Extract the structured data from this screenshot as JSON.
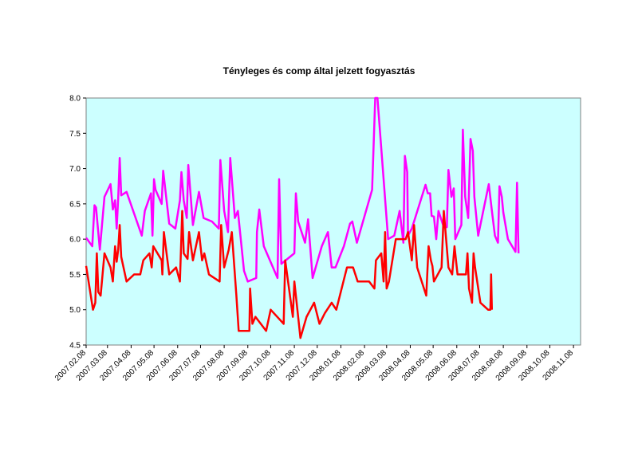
{
  "chart_data": {
    "type": "line",
    "title": "Tényleges és comp által jelzett fogyasztás",
    "xlabel": "",
    "ylabel": "",
    "ylim": [
      4.5,
      8.0
    ],
    "yticks": [
      "4.5",
      "5.0",
      "5.5",
      "6.0",
      "6.5",
      "7.0",
      "7.5",
      "8.0"
    ],
    "grid": false,
    "legend": "none",
    "plot_background": "#ccffff",
    "x_tick_labels": [
      "2007.02.08",
      "2007.03.08",
      "2007.04.08",
      "2007.05.08",
      "2007.06.08",
      "2007.07.08",
      "2007.08.08",
      "2007.09.08",
      "2007.10.08",
      "2007.11.08",
      "2007.12.08",
      "2008.01.08",
      "2008.02.08",
      "2008.03.08",
      "2008.04.08",
      "2008.05.08",
      "2008.06.08",
      "2008.07.08",
      "2008.08.08",
      "2008.09.08",
      "2008.10.08",
      "2008.11.08"
    ],
    "series": [
      {
        "color": "#ff00ff",
        "points": [
          [
            "2007-02-08",
            6.02
          ],
          [
            "2007-02-16",
            5.9
          ],
          [
            "2007-02-19",
            6.48
          ],
          [
            "2007-02-21",
            6.45
          ],
          [
            "2007-02-26",
            5.85
          ],
          [
            "2007-03-04",
            6.6
          ],
          [
            "2007-03-12",
            6.78
          ],
          [
            "2007-03-15",
            6.42
          ],
          [
            "2007-03-18",
            6.55
          ],
          [
            "2007-03-20",
            6.15
          ],
          [
            "2007-03-22",
            6.58
          ],
          [
            "2007-03-24",
            7.15
          ],
          [
            "2007-03-26",
            6.62
          ],
          [
            "2007-04-02",
            6.67
          ],
          [
            "2007-04-22",
            6.05
          ],
          [
            "2007-04-26",
            6.4
          ],
          [
            "2007-05-04",
            6.65
          ],
          [
            "2007-05-06",
            6.05
          ],
          [
            "2007-05-08",
            6.85
          ],
          [
            "2007-05-10",
            6.7
          ],
          [
            "2007-05-18",
            6.5
          ],
          [
            "2007-05-20",
            6.97
          ],
          [
            "2007-05-28",
            6.22
          ],
          [
            "2007-06-05",
            6.15
          ],
          [
            "2007-06-11",
            6.55
          ],
          [
            "2007-06-13",
            6.95
          ],
          [
            "2007-06-16",
            6.55
          ],
          [
            "2007-06-20",
            6.3
          ],
          [
            "2007-06-22",
            7.05
          ],
          [
            "2007-06-28",
            6.2
          ],
          [
            "2007-07-06",
            6.67
          ],
          [
            "2007-07-12",
            6.3
          ],
          [
            "2007-07-23",
            6.25
          ],
          [
            "2007-08-01",
            6.15
          ],
          [
            "2007-08-03",
            7.12
          ],
          [
            "2007-08-08",
            6.4
          ],
          [
            "2007-08-13",
            6.1
          ],
          [
            "2007-08-16",
            7.15
          ],
          [
            "2007-08-22",
            6.3
          ],
          [
            "2007-08-26",
            6.4
          ],
          [
            "2007-09-03",
            5.55
          ],
          [
            "2007-09-08",
            5.4
          ],
          [
            "2007-09-19",
            5.45
          ],
          [
            "2007-09-20",
            6.1
          ],
          [
            "2007-09-23",
            6.42
          ],
          [
            "2007-09-29",
            5.9
          ],
          [
            "2007-10-17",
            5.45
          ],
          [
            "2007-10-19",
            6.85
          ],
          [
            "2007-10-22",
            5.65
          ],
          [
            "2007-11-08",
            5.8
          ],
          [
            "2007-11-10",
            6.65
          ],
          [
            "2007-11-13",
            6.25
          ],
          [
            "2007-11-22",
            5.95
          ],
          [
            "2007-11-26",
            6.28
          ],
          [
            "2007-12-02",
            5.45
          ],
          [
            "2007-12-14",
            5.9
          ],
          [
            "2007-12-22",
            6.1
          ],
          [
            "2007-12-27",
            5.6
          ],
          [
            "2008-01-01",
            5.6
          ],
          [
            "2008-01-12",
            5.9
          ],
          [
            "2008-01-20",
            6.22
          ],
          [
            "2008-01-23",
            6.25
          ],
          [
            "2008-01-29",
            5.95
          ],
          [
            "2008-02-18",
            6.7
          ],
          [
            "2008-02-22",
            8.02
          ],
          [
            "2008-02-25",
            8.02
          ],
          [
            "2008-03-10",
            6.0
          ],
          [
            "2008-03-18",
            6.05
          ],
          [
            "2008-03-25",
            6.4
          ],
          [
            "2008-03-30",
            5.95
          ],
          [
            "2008-04-01",
            7.18
          ],
          [
            "2008-04-04",
            6.95
          ],
          [
            "2008-04-05",
            6.05
          ],
          [
            "2008-04-10",
            6.15
          ],
          [
            "2008-04-28",
            6.77
          ],
          [
            "2008-05-01",
            6.65
          ],
          [
            "2008-05-04",
            6.65
          ],
          [
            "2008-05-06",
            6.33
          ],
          [
            "2008-05-09",
            6.32
          ],
          [
            "2008-05-12",
            6.0
          ],
          [
            "2008-05-15",
            6.4
          ],
          [
            "2008-05-22",
            6.17
          ],
          [
            "2008-05-26",
            6.17
          ],
          [
            "2008-05-28",
            6.98
          ],
          [
            "2008-06-01",
            6.6
          ],
          [
            "2008-06-04",
            6.72
          ],
          [
            "2008-06-06",
            6.0
          ],
          [
            "2008-06-14",
            6.2
          ],
          [
            "2008-06-16",
            7.55
          ],
          [
            "2008-06-19",
            6.6
          ],
          [
            "2008-06-23",
            6.3
          ],
          [
            "2008-06-26",
            7.42
          ],
          [
            "2008-06-29",
            7.25
          ],
          [
            "2008-07-01",
            6.6
          ],
          [
            "2008-07-06",
            6.05
          ],
          [
            "2008-07-20",
            6.78
          ],
          [
            "2008-07-24",
            6.4
          ],
          [
            "2008-07-28",
            6.05
          ],
          [
            "2008-08-01",
            5.95
          ],
          [
            "2008-08-03",
            6.75
          ],
          [
            "2008-08-06",
            6.6
          ],
          [
            "2008-08-08",
            6.38
          ],
          [
            "2008-08-14",
            6.0
          ],
          [
            "2008-08-24",
            5.82
          ],
          [
            "2008-08-26",
            6.8
          ],
          [
            "2008-08-28",
            5.8
          ]
        ]
      },
      {
        "color": "#ff0000",
        "points": [
          [
            "2007-02-08",
            5.62
          ],
          [
            "2007-02-17",
            5.0
          ],
          [
            "2007-02-20",
            5.1
          ],
          [
            "2007-02-22",
            5.8
          ],
          [
            "2007-02-24",
            5.25
          ],
          [
            "2007-02-27",
            5.2
          ],
          [
            "2007-03-04",
            5.8
          ],
          [
            "2007-03-12",
            5.6
          ],
          [
            "2007-03-15",
            5.4
          ],
          [
            "2007-03-18",
            5.9
          ],
          [
            "2007-03-20",
            5.68
          ],
          [
            "2007-03-22",
            5.85
          ],
          [
            "2007-03-24",
            6.2
          ],
          [
            "2007-03-26",
            5.75
          ],
          [
            "2007-04-02",
            5.4
          ],
          [
            "2007-04-12",
            5.5
          ],
          [
            "2007-04-20",
            5.5
          ],
          [
            "2007-04-24",
            5.7
          ],
          [
            "2007-05-02",
            5.8
          ],
          [
            "2007-05-05",
            5.6
          ],
          [
            "2007-05-07",
            5.9
          ],
          [
            "2007-05-18",
            5.7
          ],
          [
            "2007-05-19",
            5.5
          ],
          [
            "2007-05-21",
            6.1
          ],
          [
            "2007-05-28",
            5.5
          ],
          [
            "2007-06-06",
            5.6
          ],
          [
            "2007-06-11",
            5.4
          ],
          [
            "2007-06-14",
            6.4
          ],
          [
            "2007-06-16",
            5.8
          ],
          [
            "2007-06-21",
            5.72
          ],
          [
            "2007-06-23",
            6.1
          ],
          [
            "2007-06-28",
            5.7
          ],
          [
            "2007-07-06",
            6.1
          ],
          [
            "2007-07-10",
            5.7
          ],
          [
            "2007-07-13",
            5.8
          ],
          [
            "2007-07-19",
            5.5
          ],
          [
            "2007-08-02",
            5.4
          ],
          [
            "2007-08-04",
            6.2
          ],
          [
            "2007-08-08",
            5.6
          ],
          [
            "2007-08-14",
            5.85
          ],
          [
            "2007-08-18",
            6.1
          ],
          [
            "2007-08-24",
            5.2
          ],
          [
            "2007-08-27",
            4.7
          ],
          [
            "2007-09-10",
            4.7
          ],
          [
            "2007-09-11",
            5.3
          ],
          [
            "2007-09-14",
            4.8
          ],
          [
            "2007-09-18",
            4.9
          ],
          [
            "2007-09-25",
            4.8
          ],
          [
            "2007-10-02",
            4.7
          ],
          [
            "2007-10-08",
            5.0
          ],
          [
            "2007-10-25",
            4.8
          ],
          [
            "2007-10-27",
            5.7
          ],
          [
            "2007-11-06",
            4.9
          ],
          [
            "2007-11-08",
            5.4
          ],
          [
            "2007-11-16",
            4.6
          ],
          [
            "2007-11-24",
            4.9
          ],
          [
            "2007-12-04",
            5.1
          ],
          [
            "2007-12-11",
            4.8
          ],
          [
            "2007-12-18",
            4.95
          ],
          [
            "2007-12-27",
            5.1
          ],
          [
            "2008-01-02",
            5.0
          ],
          [
            "2008-01-09",
            5.3
          ],
          [
            "2008-01-16",
            5.6
          ],
          [
            "2008-01-24",
            5.6
          ],
          [
            "2008-01-30",
            5.4
          ],
          [
            "2008-02-14",
            5.4
          ],
          [
            "2008-02-21",
            5.3
          ],
          [
            "2008-02-23",
            5.7
          ],
          [
            "2008-03-01",
            5.8
          ],
          [
            "2008-03-04",
            5.4
          ],
          [
            "2008-03-06",
            6.1
          ],
          [
            "2008-03-08",
            5.3
          ],
          [
            "2008-03-11",
            5.4
          ],
          [
            "2008-03-20",
            6.0
          ],
          [
            "2008-04-02",
            6.0
          ],
          [
            "2008-04-05",
            6.1
          ],
          [
            "2008-04-10",
            5.7
          ],
          [
            "2008-04-13",
            6.2
          ],
          [
            "2008-04-17",
            5.6
          ],
          [
            "2008-04-29",
            5.2
          ],
          [
            "2008-05-02",
            5.9
          ],
          [
            "2008-05-05",
            5.7
          ],
          [
            "2008-05-07",
            5.62
          ],
          [
            "2008-05-09",
            5.4
          ],
          [
            "2008-05-19",
            5.6
          ],
          [
            "2008-05-22",
            6.4
          ],
          [
            "2008-05-28",
            5.6
          ],
          [
            "2008-06-02",
            5.5
          ],
          [
            "2008-06-05",
            5.9
          ],
          [
            "2008-06-07",
            5.7
          ],
          [
            "2008-06-09",
            5.5
          ],
          [
            "2008-06-20",
            5.5
          ],
          [
            "2008-06-22",
            5.8
          ],
          [
            "2008-06-24",
            5.3
          ],
          [
            "2008-06-28",
            5.1
          ],
          [
            "2008-06-30",
            5.8
          ],
          [
            "2008-07-02",
            5.6
          ],
          [
            "2008-07-09",
            5.1
          ],
          [
            "2008-07-19",
            5.0
          ],
          [
            "2008-07-22",
            5.0
          ],
          [
            "2008-07-23",
            5.5
          ],
          [
            "2008-07-24",
            5.0
          ]
        ]
      }
    ]
  }
}
